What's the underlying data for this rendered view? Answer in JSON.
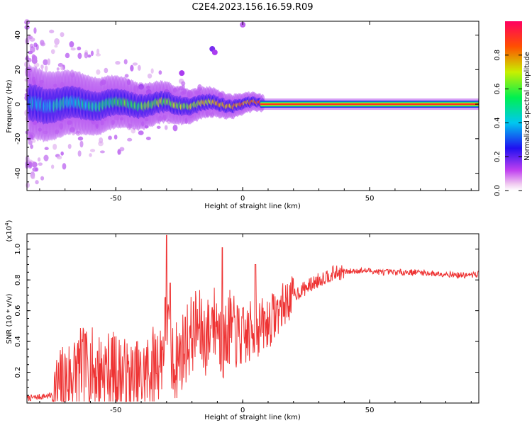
{
  "title": "C2E4.2023.156.16.59.R09",
  "chart_data": [
    {
      "type": "heatmap",
      "xlabel": "Height of straight line (km)",
      "ylabel": "Frequency (Hz)",
      "xlim": [
        -85,
        93
      ],
      "ylim": [
        -50,
        48
      ],
      "xticks": [
        "-50",
        "0",
        "50"
      ],
      "yticks": [
        "-40",
        "-20",
        "0",
        "20",
        "40"
      ],
      "colorbar": {
        "label": "Normalized spectral amplitude",
        "range": [
          0,
          1
        ],
        "ticks": [
          "0.0",
          "0.2",
          "0.4",
          "0.6",
          "0.8"
        ],
        "colormap": "rainbow (magenta → blue → cyan → green → yellow → red)"
      },
      "description_points": [
        {
          "x": -70,
          "freq": -2,
          "amp": 0.35
        },
        {
          "x": -50,
          "freq": 0,
          "amp": 0.45
        },
        {
          "x": -30,
          "freq": 0,
          "amp": 0.55
        },
        {
          "x": -10,
          "freq": -1,
          "amp": 0.7
        },
        {
          "x": 0,
          "freq": 0,
          "amp": 0.8
        },
        {
          "x": 10,
          "freq": 0,
          "amp": 0.9
        },
        {
          "x": 50,
          "freq": 0,
          "amp": 0.9
        },
        {
          "x": 90,
          "freq": 0,
          "amp": 0.9
        }
      ]
    },
    {
      "type": "line",
      "xlabel": "Height of straight line (km)",
      "ylabel": "SNR (10 * v/v)",
      "yscale_label": "(x10",
      "yscale_exp": "4",
      "yscale_close": ")",
      "xlim": [
        -85,
        93
      ],
      "ylim": [
        0,
        1.1
      ],
      "xticks": [
        "-50",
        "0",
        "50"
      ],
      "yticks": [
        "0.2",
        "0.4",
        "0.6",
        "0.8",
        "1.0"
      ],
      "color": "#ee3333",
      "series": [
        {
          "x": [
            -85,
            -80,
            -75,
            -72,
            -70,
            -65,
            -60,
            -58,
            -55,
            -50,
            -45,
            -40,
            -38,
            -35,
            -32,
            -30,
            -28,
            -25,
            -22,
            -20,
            -18,
            -15,
            -12,
            -10,
            -8,
            -5,
            -3,
            0,
            5,
            10,
            15,
            20,
            25,
            30,
            35,
            40,
            45,
            50,
            55,
            60,
            65,
            70,
            75,
            80,
            85,
            90,
            93
          ],
          "y": [
            0.03,
            0.04,
            0.05,
            0.1,
            0.15,
            0.22,
            0.25,
            0.2,
            0.22,
            0.2,
            0.15,
            0.15,
            0.2,
            0.25,
            0.3,
            0.55,
            0.25,
            0.3,
            0.4,
            0.45,
            0.5,
            0.42,
            0.48,
            0.55,
            0.35,
            0.5,
            0.45,
            0.42,
            0.48,
            0.52,
            0.62,
            0.7,
            0.75,
            0.8,
            0.84,
            0.85,
            0.86,
            0.86,
            0.85,
            0.85,
            0.85,
            0.85,
            0.84,
            0.84,
            0.83,
            0.83,
            0.84
          ],
          "spikes": [
            {
              "x": -30,
              "y": 1.09
            },
            {
              "x": -28.5,
              "y": 0.78
            },
            {
              "x": -8,
              "y": 1.01
            },
            {
              "x": 5,
              "y": 0.9
            },
            {
              "x": -12,
              "y": 0.62
            },
            {
              "x": -62,
              "y": 0.45
            }
          ]
        }
      ]
    }
  ]
}
